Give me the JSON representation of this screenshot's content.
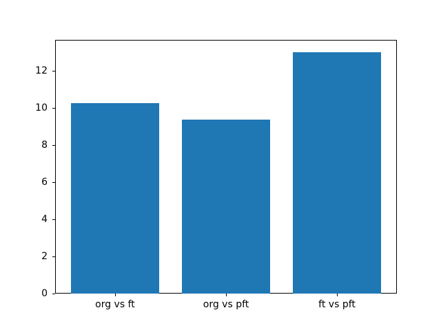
{
  "chart_data": {
    "type": "bar",
    "categories": [
      "org vs ft",
      "org vs pft",
      "ft vs pft"
    ],
    "values": [
      10.25,
      9.35,
      13.0
    ],
    "title": "",
    "xlabel": "",
    "ylabel": "",
    "ylim": [
      0,
      13.65
    ],
    "xlim": [
      -0.54,
      2.54
    ],
    "bar_width": 0.8,
    "yticks": [
      0,
      2,
      4,
      6,
      8,
      10,
      12
    ],
    "grid": false,
    "legend": null,
    "bar_color": "#1f77b4"
  },
  "figure": {
    "background": "#ffffff",
    "spine_color": "#000000",
    "tick_color": "#000000"
  }
}
